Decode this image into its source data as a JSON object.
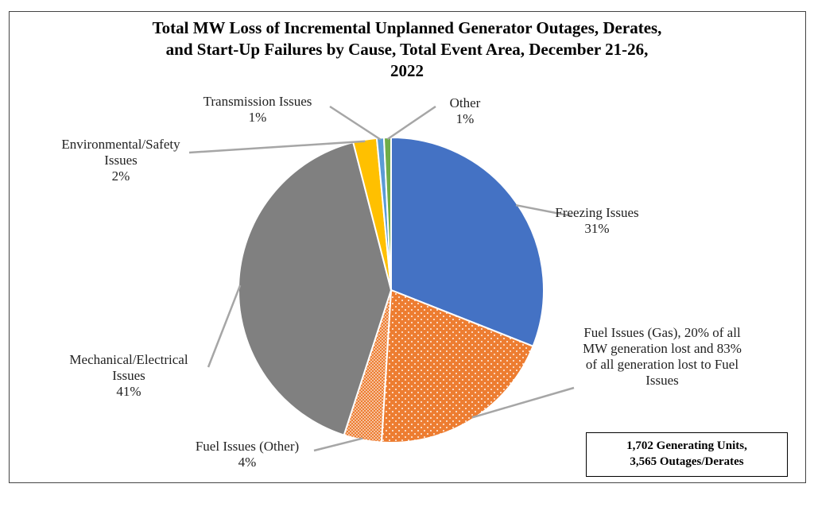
{
  "chart_data": {
    "type": "pie",
    "title_lines": [
      "Total MW Loss of Incremental Unplanned Generator Outages, Derates,",
      "and Start-Up Failures by Cause, Total Event Area,  December 21-26,",
      "2022"
    ],
    "slices": [
      {
        "label": "Freezing Issues",
        "label_lines": [
          "Freezing Issues"
        ],
        "pct_text": "31%",
        "value": 31,
        "color": "#4472C4",
        "pattern": "none"
      },
      {
        "label": "Fuel Issues (Gas), 20% of all MW generation lost and 83% of all generation lost to Fuel Issues",
        "label_lines": [
          "Fuel Issues (Gas), 20% of all",
          "MW generation lost and 83%",
          "of all generation lost to Fuel",
          "Issues"
        ],
        "pct_text": "",
        "value": 20,
        "color": "#ED7D31",
        "pattern": "dots-sparse"
      },
      {
        "label": "Fuel Issues (Other)",
        "label_lines": [
          "Fuel Issues (Other)"
        ],
        "pct_text": "4%",
        "value": 4,
        "color": "#ED7D31",
        "pattern": "dots-dense"
      },
      {
        "label": "Mechanical/Electrical Issues",
        "label_lines": [
          "Mechanical/Electrical",
          "Issues"
        ],
        "pct_text": "41%",
        "value": 41,
        "color": "#808080",
        "pattern": "none"
      },
      {
        "label": "Environmental/Safety Issues",
        "label_lines": [
          "Environmental/Safety",
          "Issues"
        ],
        "pct_text": "2%",
        "value": 2.5,
        "color": "#FFC000",
        "pattern": "none"
      },
      {
        "label": "Transmission Issues",
        "label_lines": [
          "Transmission Issues"
        ],
        "pct_text": "1%",
        "value": 0.75,
        "color": "#5B9BD5",
        "pattern": "none"
      },
      {
        "label": "Other",
        "label_lines": [
          "Other"
        ],
        "pct_text": "1%",
        "value": 0.75,
        "color": "#70AD47",
        "pattern": "none"
      }
    ],
    "start_angle_deg": 0,
    "direction": "clockwise",
    "legend": "none"
  },
  "note_box": {
    "line1": "1,702 Generating Units,",
    "line2": "3,565 Outages/Derates"
  },
  "colors": {
    "leader_line": "#A6A6A6",
    "slice_border": "#FFFFFF",
    "frame": "#444444"
  }
}
